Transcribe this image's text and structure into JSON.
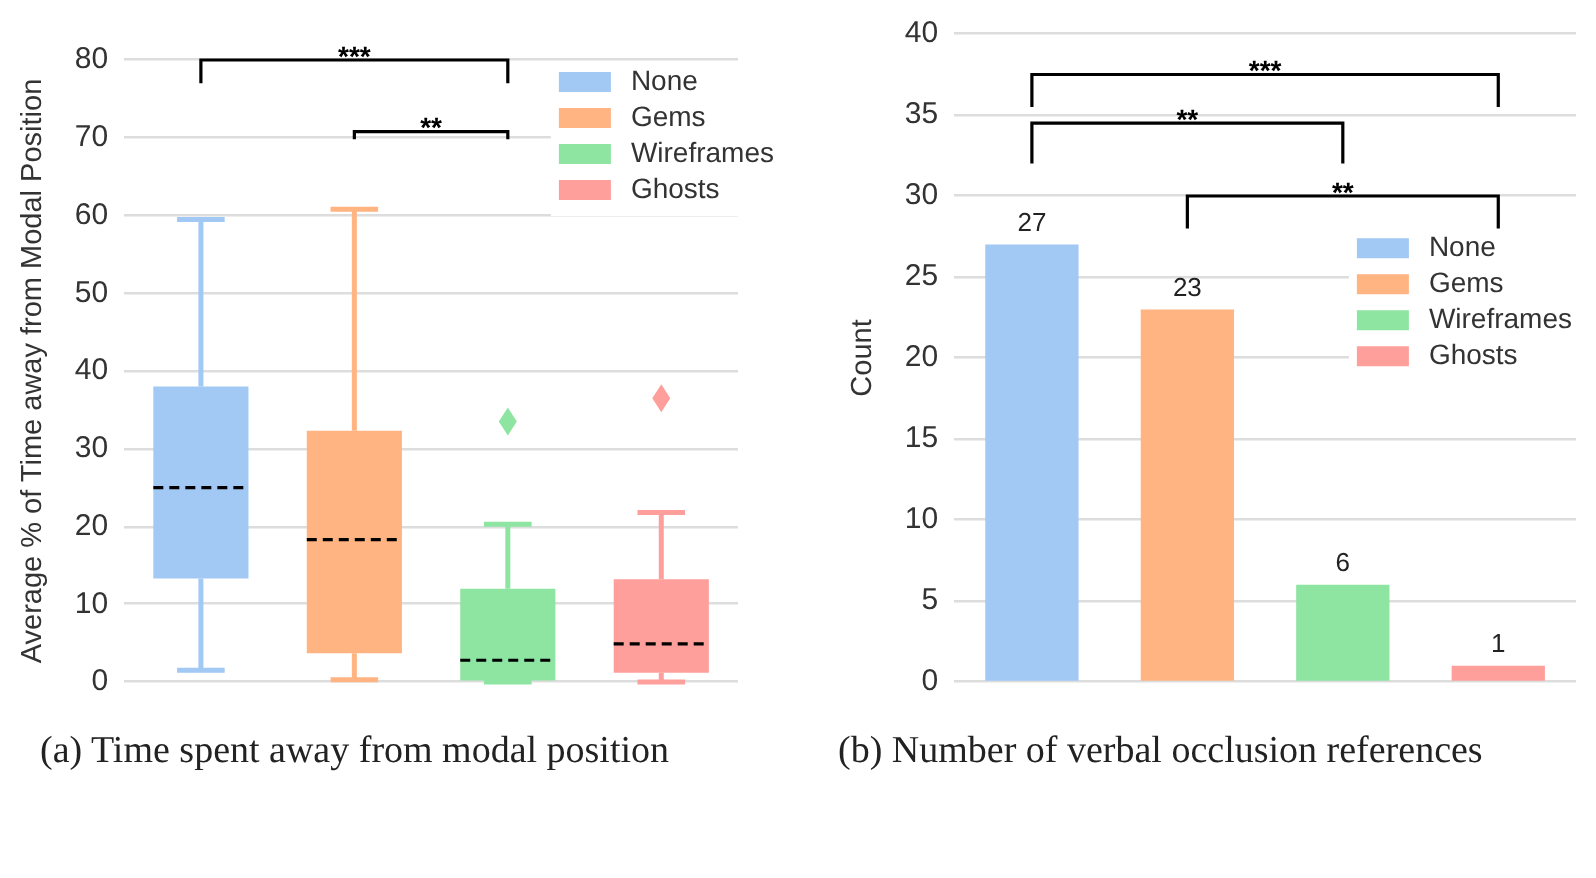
{
  "chart_data": [
    {
      "type": "box",
      "title": "(a) Time spent away from modal position",
      "ylabel": "Average % of Time away from Modal Position",
      "categories": [
        null,
        null,
        null,
        null
      ],
      "series": [
        {
          "name": "None",
          "color": "#a1c9f4",
          "boxes": [
            {
              "low": 1.5,
              "q1": 13.3,
              "median": 25,
              "q3": 38,
              "high": 59.5
            },
            null,
            null,
            null
          ]
        },
        {
          "name": "Gems",
          "color": "#ffb482",
          "boxes": [
            null,
            {
              "low": 0.3,
              "q1": 3.7,
              "median": 18.3,
              "q3": 32.3,
              "high": 60.8
            },
            null,
            null
          ]
        },
        {
          "name": "Wireframes",
          "color": "#8de5a1",
          "boxes": [
            null,
            null,
            {
              "low": 0,
              "q1": 0.2,
              "median": 2.8,
              "q3": 12,
              "high": 20.3,
              "outliers": [
                33.5
              ]
            },
            null
          ]
        },
        {
          "name": "Ghosts",
          "color": "#ff9f9b",
          "boxes": [
            null,
            null,
            null,
            {
              "low": 0,
              "q1": 1.2,
              "median": 4.9,
              "q3": 13.2,
              "high": 21.8,
              "outliers": [
                36.5
              ]
            }
          ]
        }
      ],
      "ylim": [
        0,
        80
      ],
      "yticks": [
        0,
        10,
        20,
        30,
        40,
        50,
        60,
        70,
        80
      ],
      "grid": "y",
      "legend": "top right",
      "tick_labels": "y",
      "annotations": [
        "***",
        "**"
      ]
    },
    {
      "type": "bar",
      "title": "(b) Number of verbal occlusion references",
      "ylabel": "Count",
      "categories": [
        null,
        null,
        null,
        null
      ],
      "series": [
        {
          "name": "None",
          "color": "#a1c9f4",
          "values": [
            27,
            null,
            null,
            null
          ]
        },
        {
          "name": "Gems",
          "color": "#ffb482",
          "values": [
            null,
            23,
            null,
            null
          ]
        },
        {
          "name": "Wireframes",
          "color": "#8de5a1",
          "values": [
            null,
            null,
            6,
            null
          ]
        },
        {
          "name": "Ghosts",
          "color": "#ff9f9b",
          "values": [
            null,
            null,
            null,
            1
          ]
        }
      ],
      "ylim": [
        0,
        40
      ],
      "yticks": [
        0,
        5,
        10,
        15,
        20,
        25,
        30,
        35,
        40
      ],
      "grid": "y",
      "legend": "right",
      "tick_labels": "y",
      "data_labels": true,
      "annotations": [
        "***",
        "**",
        "**"
      ]
    }
  ]
}
